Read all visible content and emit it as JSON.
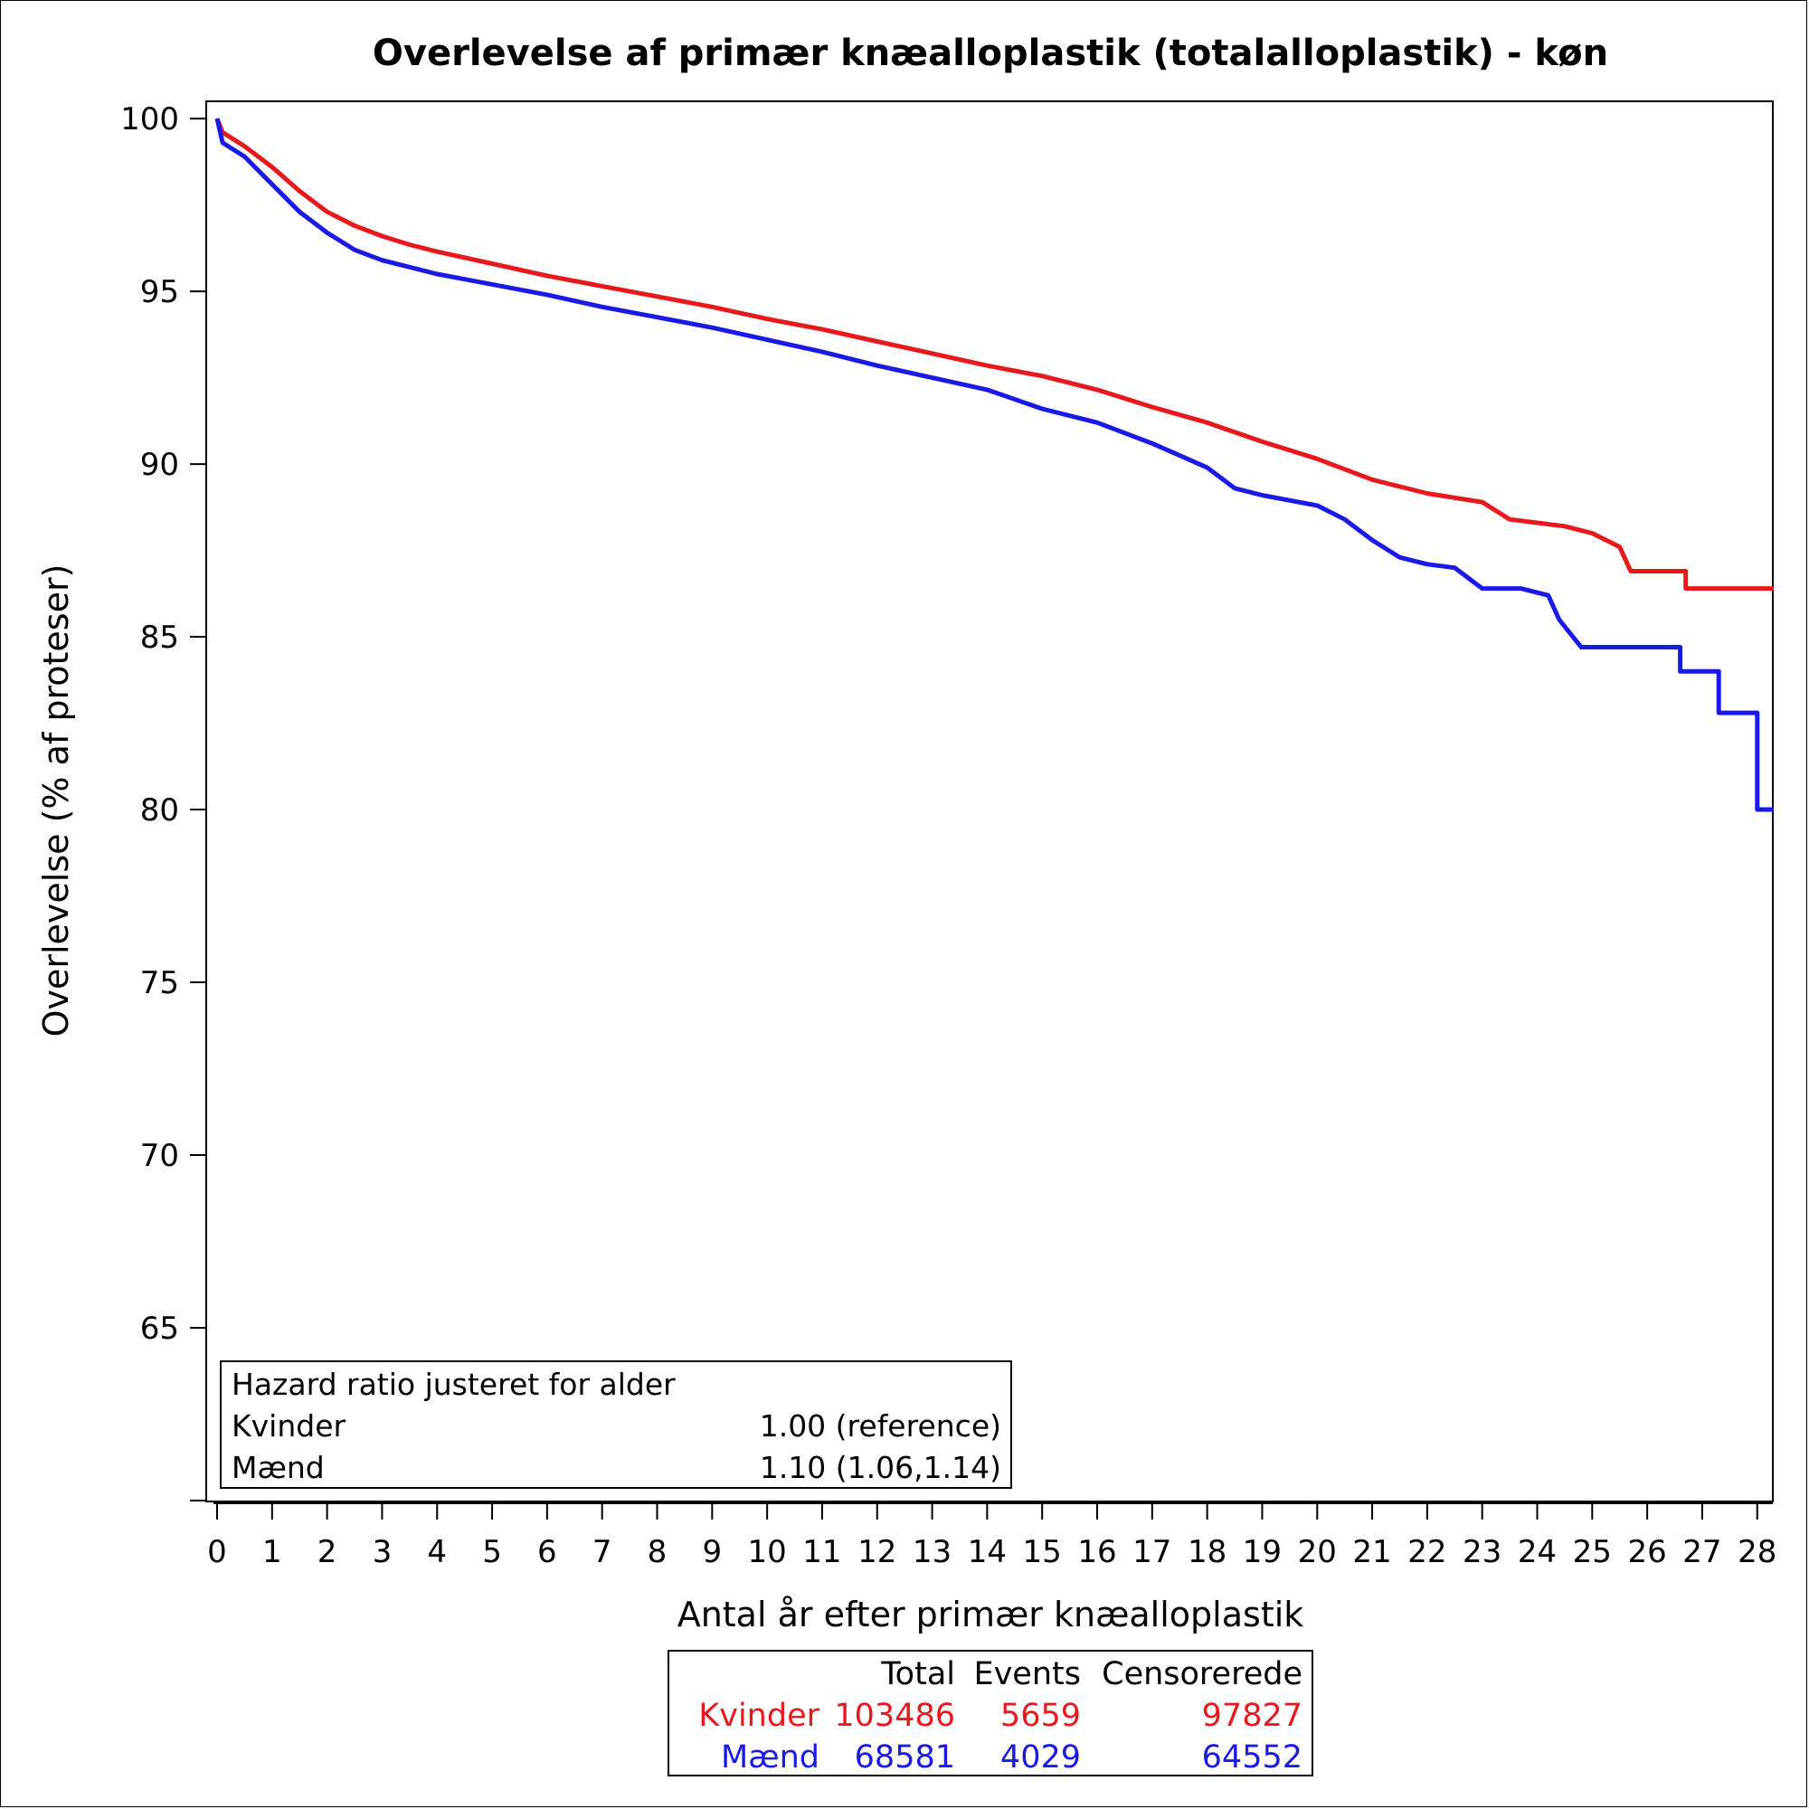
{
  "chart_data": {
    "type": "line",
    "title": "Overlevelse af primær knæalloplastik (totalalloplastik) - køn",
    "xlabel": "Antal år efter primær knæalloplastik",
    "ylabel": "Overlevelse (% af proteser)",
    "xlim": [
      0,
      28.3
    ],
    "ylim": [
      60,
      100.5
    ],
    "xticks": [
      0,
      1,
      2,
      3,
      4,
      5,
      6,
      7,
      8,
      9,
      10,
      11,
      12,
      13,
      14,
      15,
      16,
      17,
      18,
      19,
      20,
      21,
      22,
      23,
      24,
      25,
      26,
      27,
      28
    ],
    "yticks": [
      65,
      70,
      75,
      80,
      85,
      90,
      95,
      100
    ],
    "grid": false,
    "series": [
      {
        "name": "Kvinder",
        "color": "#e8191c",
        "step": false,
        "points": [
          [
            0,
            100
          ],
          [
            0.1,
            99.6
          ],
          [
            0.5,
            99.2
          ],
          [
            1,
            98.6
          ],
          [
            1.5,
            97.9
          ],
          [
            2,
            97.3
          ],
          [
            2.5,
            96.9
          ],
          [
            3,
            96.6
          ],
          [
            3.5,
            96.35
          ],
          [
            4,
            96.15
          ],
          [
            5,
            95.8
          ],
          [
            6,
            95.45
          ],
          [
            7,
            95.15
          ],
          [
            8,
            94.85
          ],
          [
            9,
            94.55
          ],
          [
            10,
            94.2
          ],
          [
            11,
            93.9
          ],
          [
            12,
            93.55
          ],
          [
            13,
            93.2
          ],
          [
            14,
            92.85
          ],
          [
            15,
            92.55
          ],
          [
            16,
            92.15
          ],
          [
            17,
            91.65
          ],
          [
            18,
            91.2
          ],
          [
            19,
            90.65
          ],
          [
            20,
            90.15
          ],
          [
            21,
            89.55
          ],
          [
            22,
            89.15
          ],
          [
            23,
            88.9
          ],
          [
            23.5,
            88.4
          ],
          [
            24,
            88.3
          ],
          [
            24.5,
            88.2
          ],
          [
            25,
            88.0
          ],
          [
            25.5,
            87.6
          ],
          [
            25.7,
            86.9
          ],
          [
            26,
            86.9
          ],
          [
            26.7,
            86.9
          ],
          [
            26.7,
            86.4
          ],
          [
            28.3,
            86.4
          ]
        ]
      },
      {
        "name": "Mænd",
        "color": "#1a1ae6",
        "step": false,
        "points": [
          [
            0,
            100
          ],
          [
            0.1,
            99.3
          ],
          [
            0.5,
            98.9
          ],
          [
            1,
            98.1
          ],
          [
            1.5,
            97.3
          ],
          [
            2,
            96.7
          ],
          [
            2.5,
            96.2
          ],
          [
            3,
            95.9
          ],
          [
            3.5,
            95.7
          ],
          [
            4,
            95.5
          ],
          [
            5,
            95.2
          ],
          [
            6,
            94.9
          ],
          [
            7,
            94.55
          ],
          [
            8,
            94.25
          ],
          [
            9,
            93.95
          ],
          [
            10,
            93.6
          ],
          [
            11,
            93.25
          ],
          [
            12,
            92.85
          ],
          [
            13,
            92.5
          ],
          [
            14,
            92.15
          ],
          [
            15,
            91.6
          ],
          [
            16,
            91.2
          ],
          [
            17,
            90.6
          ],
          [
            18,
            89.9
          ],
          [
            18.5,
            89.3
          ],
          [
            19,
            89.1
          ],
          [
            20,
            88.8
          ],
          [
            20.5,
            88.4
          ],
          [
            21,
            87.8
          ],
          [
            21.5,
            87.3
          ],
          [
            22,
            87.1
          ],
          [
            22.5,
            87.0
          ],
          [
            23,
            86.4
          ],
          [
            23.7,
            86.4
          ],
          [
            24.2,
            86.2
          ],
          [
            24.4,
            85.5
          ],
          [
            24.7,
            84.9
          ],
          [
            24.8,
            84.7
          ],
          [
            26.6,
            84.7
          ],
          [
            26.6,
            84.0
          ],
          [
            27.3,
            84.0
          ],
          [
            27.3,
            82.8
          ],
          [
            28,
            82.8
          ],
          [
            28,
            80
          ],
          [
            28.3,
            80
          ]
        ]
      }
    ],
    "annotation": {
      "title": "Hazard ratio justeret for alder",
      "rows": [
        {
          "label": "Kvinder",
          "value": "1.00 (reference)"
        },
        {
          "label": "Mænd",
          "value": "1.10 (1.06,1.14)"
        }
      ],
      "placement": "bottom-left"
    },
    "table": {
      "headers": [
        "",
        "Total",
        "Events",
        "Censorerede"
      ],
      "rows": [
        {
          "group": "Kvinder",
          "color": "#e8191c",
          "total": "103486",
          "events": "5659",
          "censored": "97827"
        },
        {
          "group": "Mænd",
          "color": "#1a1ae6",
          "total": "68581",
          "events": "4029",
          "censored": "64552"
        }
      ],
      "placement": "bottom-center"
    }
  }
}
